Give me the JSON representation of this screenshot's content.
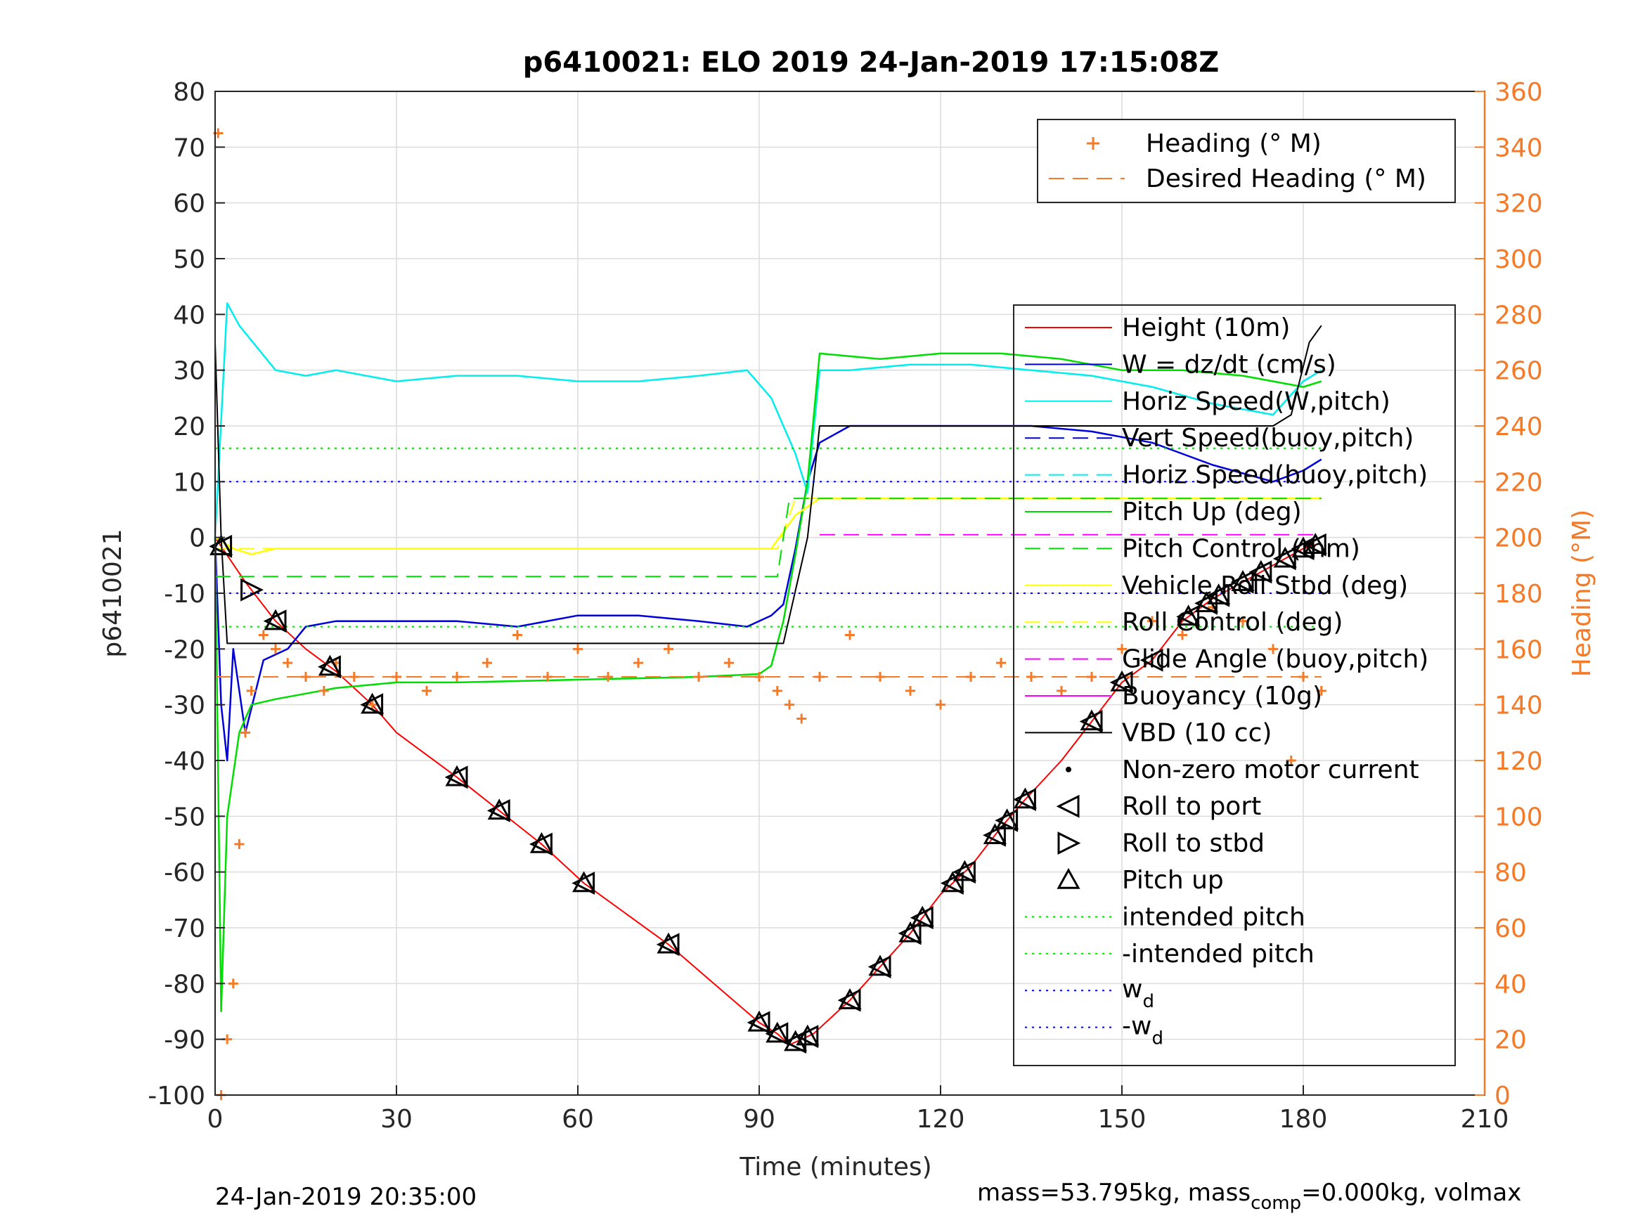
{
  "chart_data": {
    "type": "line",
    "title": "p6410021: ELO 2019 24-Jan-2019 17:15:08Z",
    "xlabel": "Time (minutes)",
    "ylabel": "p6410021",
    "y2label": "Heading (°M)",
    "xlim": [
      0,
      210
    ],
    "ylim": [
      -100,
      80
    ],
    "y2lim": [
      0,
      360
    ],
    "xticks": [
      0,
      30,
      60,
      90,
      120,
      150,
      180,
      210
    ],
    "yticks": [
      -100,
      -90,
      -80,
      -70,
      -60,
      -50,
      -40,
      -30,
      -20,
      -10,
      0,
      10,
      20,
      30,
      40,
      50,
      60,
      70,
      80
    ],
    "y2ticks": [
      0,
      20,
      40,
      60,
      80,
      100,
      120,
      140,
      160,
      180,
      200,
      220,
      240,
      260,
      280,
      300,
      320,
      340,
      360
    ],
    "grid": true,
    "colors": {
      "height": "#ff0000",
      "w": "#0000dd",
      "horiz_speed": "#00eeee",
      "pitch": "#00dd00",
      "roll": "#ffff00",
      "heading": "#f47a28",
      "buoyancy": "#ff00ff",
      "vbd": "#000000",
      "wd": "#0000ff"
    },
    "legend_top": {
      "placement": "top-right",
      "entries": [
        "Heading (° M)",
        "Desired Heading (° M)"
      ]
    },
    "legend_main": {
      "placement": "right",
      "entries": [
        "Height (10m)",
        "W = dz/dt (cm/s)",
        "Horiz Speed(W,pitch)",
        "Vert Speed(buoy,pitch)",
        "Horiz Speed(buoy,pitch)",
        "Pitch Up (deg)",
        "Pitch Control (mm)",
        "Vehicle Roll Stbd (deg)",
        "Roll Control (deg)",
        "Glide Angle (buoy,pitch)",
        "Buoyancy (10g)",
        "VBD (10 cc)",
        "Non-zero motor current",
        "Roll to port",
        "Roll to stbd",
        "Pitch up",
        "intended pitch",
        "-intended pitch",
        "w_d",
        "-w_d"
      ]
    },
    "series": [
      {
        "name": "Height (10m)",
        "x": [
          0,
          5,
          10,
          15,
          20,
          26,
          30,
          40,
          47,
          54,
          61,
          75,
          90,
          93,
          95,
          97,
          99,
          105,
          110,
          115,
          120,
          125,
          130,
          134,
          140,
          145,
          150,
          155,
          160,
          165,
          170,
          175,
          180,
          183
        ],
        "y": [
          0,
          -8,
          -15,
          -20,
          -24,
          -30,
          -35,
          -43,
          -49,
          -55,
          -62,
          -73,
          -87,
          -89,
          -91,
          -90,
          -89,
          -83,
          -77,
          -71,
          -64,
          -59,
          -52,
          -47,
          -40,
          -33,
          -26,
          -22,
          -15,
          -11,
          -8,
          -5,
          -2,
          -1
        ]
      },
      {
        "name": "W = dz/dt (cm/s)",
        "x": [
          0,
          1,
          2,
          3,
          5,
          8,
          12,
          15,
          20,
          30,
          40,
          50,
          60,
          70,
          80,
          88,
          92,
          94,
          96,
          98,
          100,
          105,
          115,
          125,
          135,
          145,
          155,
          165,
          175,
          180,
          183
        ],
        "y": [
          0,
          -30,
          -40,
          -20,
          -35,
          -22,
          -20,
          -16,
          -15,
          -15,
          -15,
          -16,
          -14,
          -14,
          -15,
          -16,
          -14,
          -12,
          -2,
          10,
          17,
          20,
          20,
          20,
          20,
          19,
          17,
          13,
          10,
          12,
          14
        ]
      },
      {
        "name": "Horiz Speed(W,pitch)",
        "x": [
          0,
          2,
          4,
          7,
          10,
          15,
          20,
          30,
          40,
          50,
          60,
          70,
          80,
          88,
          92,
          94,
          96,
          98,
          100,
          105,
          115,
          125,
          135,
          145,
          155,
          165,
          175,
          180,
          183
        ],
        "y": [
          0,
          42,
          38,
          34,
          30,
          29,
          30,
          28,
          29,
          29,
          28,
          28,
          29,
          30,
          25,
          20,
          15,
          8,
          30,
          30,
          31,
          31,
          30,
          29,
          27,
          24,
          22,
          28,
          30
        ]
      },
      {
        "name": "Pitch Up (deg)",
        "x": [
          0,
          1,
          2,
          4,
          6,
          10,
          15,
          20,
          30,
          40,
          60,
          80,
          90,
          92,
          94,
          96,
          98,
          100,
          110,
          120,
          130,
          140,
          150,
          160,
          170,
          180,
          183
        ],
        "y": [
          0,
          -85,
          -50,
          -35,
          -30,
          -29,
          -28,
          -27,
          -26,
          -26,
          -25.5,
          -25,
          -24.5,
          -23,
          -15,
          -3,
          10,
          33,
          32,
          33,
          33,
          32,
          30,
          30,
          29,
          27,
          28
        ]
      },
      {
        "name": "Vehicle Roll Stbd (deg)",
        "x": [
          0,
          3,
          6,
          10,
          20,
          30,
          40,
          60,
          80,
          92,
          96,
          100,
          110,
          120,
          140,
          160,
          180,
          183
        ],
        "y": [
          0,
          -2,
          -3,
          -2,
          -2,
          -2,
          -2,
          -2,
          -2,
          -2,
          4,
          7,
          7,
          7,
          7,
          7,
          7,
          7
        ]
      },
      {
        "name": "Roll Control (deg)",
        "x": [
          0,
          8,
          93,
          96,
          183
        ],
        "y": [
          -2,
          -2,
          -2,
          7,
          7
        ]
      },
      {
        "name": "Buoyancy (10g)",
        "x": [
          100,
          183
        ],
        "y": [
          0.5,
          0.5
        ]
      },
      {
        "name": "VBD (10 cc)",
        "x": [
          0,
          1,
          2,
          94,
          98,
          100,
          133,
          175,
          178,
          181,
          183
        ],
        "y": [
          35,
          0,
          -19,
          -19,
          0,
          20,
          20,
          20,
          22,
          35,
          38
        ]
      },
      {
        "name": "intended pitch",
        "x": [
          0,
          183
        ],
        "y": [
          16,
          16
        ]
      },
      {
        "name": "-intended pitch",
        "x": [
          0,
          183
        ],
        "y": [
          -16,
          -16
        ]
      },
      {
        "name": "w_d",
        "x": [
          0,
          183
        ],
        "y": [
          10,
          10
        ]
      },
      {
        "name": "-w_d",
        "x": [
          0,
          183
        ],
        "y": [
          -10,
          -10
        ]
      },
      {
        "name": "Pitch Control (mm)",
        "x": [
          0,
          93,
          95,
          183
        ],
        "y": [
          -7,
          -7,
          7,
          7
        ]
      },
      {
        "name": "Heading (° M)",
        "axis": "right",
        "x": [
          0.5,
          1,
          2,
          3,
          4,
          5,
          6,
          8,
          10,
          12,
          15,
          18,
          20,
          23,
          26,
          30,
          35,
          40,
          45,
          50,
          55,
          60,
          65,
          70,
          75,
          80,
          85,
          90,
          93,
          95,
          97,
          100,
          105,
          110,
          115,
          120,
          125,
          130,
          135,
          140,
          145,
          150,
          155,
          160,
          165,
          170,
          175,
          178,
          180,
          183
        ],
        "y": [
          345,
          0,
          20,
          40,
          90,
          130,
          145,
          165,
          160,
          155,
          150,
          145,
          155,
          150,
          140,
          150,
          145,
          150,
          155,
          165,
          150,
          160,
          150,
          155,
          160,
          150,
          155,
          150,
          145,
          140,
          135,
          150,
          165,
          150,
          145,
          140,
          150,
          155,
          150,
          145,
          150,
          160,
          170,
          165,
          175,
          170,
          160,
          120,
          150,
          145
        ]
      },
      {
        "name": "Desired Heading (° M)",
        "axis": "right",
        "x": [
          0,
          183
        ],
        "y": [
          150,
          150
        ]
      }
    ],
    "markers": {
      "roll_to_port_x": [
        1,
        10,
        19,
        26,
        40,
        47,
        54,
        61,
        75,
        90,
        93,
        96,
        98,
        105,
        110,
        115,
        117,
        122,
        124,
        129,
        131,
        134,
        145,
        150,
        155,
        161,
        164,
        166,
        170,
        173,
        177,
        180,
        182
      ],
      "roll_to_stbd_x": [
        6
      ],
      "pitch_up_x": [
        1,
        10,
        19,
        26,
        40,
        47,
        54,
        61,
        75,
        90,
        93,
        96,
        98,
        105,
        110,
        115,
        117,
        122,
        124,
        129,
        131,
        134,
        145,
        150,
        161,
        164,
        166,
        170,
        173,
        177,
        180,
        182
      ]
    },
    "footer_left": "24-Jan-2019 20:35:00",
    "footer_right": "mass=53.795kg, mass",
    "footer_right_sub": "comp",
    "footer_right_tail": "=0.000kg, volmax"
  }
}
